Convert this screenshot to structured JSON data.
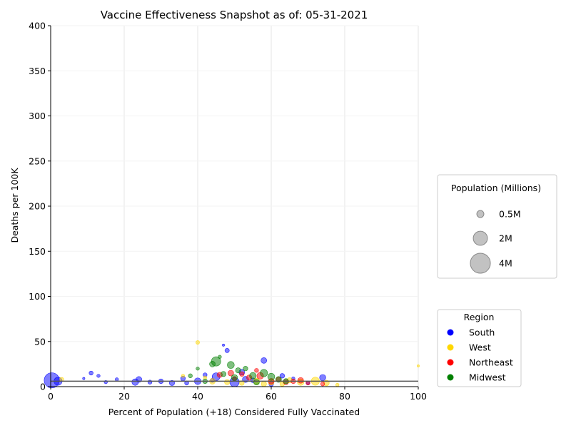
{
  "chart_data": {
    "type": "scatter",
    "title": "Vaccine Effectiveness Snapshot as of: 05-31-2021",
    "xlabel": "Percent of Population (+18) Considered Fully Vaccinated",
    "ylabel": "Deaths per 100K",
    "xlim": [
      0,
      100
    ],
    "ylim": [
      0,
      400
    ],
    "xticks": [
      "0",
      "20",
      "40",
      "60",
      "80",
      "100"
    ],
    "yticks": [
      "0",
      "50",
      "100",
      "150",
      "200",
      "250",
      "300",
      "350",
      "400"
    ],
    "grid": "vertical",
    "reference_line_y": 6,
    "size_legend": {
      "title": "Population (Millions)",
      "entries": [
        {
          "label": "0.5M",
          "pop": 0.5
        },
        {
          "label": "2M",
          "pop": 2
        },
        {
          "label": "4M",
          "pop": 4
        }
      ]
    },
    "region_legend": {
      "title": "Region",
      "entries": [
        {
          "label": "South",
          "color": "#0000ff"
        },
        {
          "label": "West",
          "color": "#ffd700"
        },
        {
          "label": "Northeast",
          "color": "#ff0000"
        },
        {
          "label": "Midwest",
          "color": "#008000"
        }
      ]
    },
    "series": [
      {
        "name": "South",
        "color": "#0000ff",
        "points": [
          [
            0.3,
            7,
            4.2
          ],
          [
            2,
            6,
            1.2
          ],
          [
            11,
            15,
            0.3
          ],
          [
            23,
            5,
            0.8
          ],
          [
            24,
            8,
            0.6
          ],
          [
            30,
            6,
            0.4
          ],
          [
            33,
            4,
            0.5
          ],
          [
            36,
            9,
            0.4
          ],
          [
            40,
            6,
            0.8
          ],
          [
            42,
            13,
            0.3
          ],
          [
            45,
            11,
            1.1
          ],
          [
            48,
            40,
            0.35
          ],
          [
            50,
            5,
            1.6
          ],
          [
            52,
            16,
            0.6
          ],
          [
            53,
            8,
            0.7
          ],
          [
            55,
            7,
            0.4
          ],
          [
            58,
            29,
            0.6
          ],
          [
            60,
            3,
            0.4
          ],
          [
            63,
            12,
            0.4
          ],
          [
            74,
            10,
            0.7
          ],
          [
            47,
            46,
            0.1
          ],
          [
            37,
            4,
            0.3
          ],
          [
            27,
            5,
            0.3
          ],
          [
            18,
            8,
            0.2
          ],
          [
            15,
            5,
            0.2
          ],
          [
            9,
            9,
            0.1
          ],
          [
            13,
            12,
            0.2
          ],
          [
            44,
            7,
            0.3
          ],
          [
            66,
            9,
            0.2
          ],
          [
            70,
            4,
            0.2
          ]
        ]
      },
      {
        "name": "West",
        "color": "#ffd700",
        "points": [
          [
            3,
            8,
            0.3
          ],
          [
            40,
            49,
            0.25
          ],
          [
            44,
            6,
            0.6
          ],
          [
            48,
            5,
            0.5
          ],
          [
            52,
            4,
            0.4
          ],
          [
            56,
            6,
            0.7
          ],
          [
            60,
            5,
            0.6
          ],
          [
            65,
            7,
            0.5
          ],
          [
            68,
            5,
            0.8
          ],
          [
            72,
            6,
            1.2
          ],
          [
            75,
            4,
            0.6
          ],
          [
            78,
            2,
            0.2
          ],
          [
            100,
            23,
            0.1
          ],
          [
            42,
            10,
            0.2
          ],
          [
            36,
            12,
            0.2
          ],
          [
            58,
            3,
            0.5
          ],
          [
            63,
            3,
            0.4
          ]
        ]
      },
      {
        "name": "Northeast",
        "color": "#ff0000",
        "points": [
          [
            46,
            13,
            0.5
          ],
          [
            49,
            15,
            0.6
          ],
          [
            52,
            14,
            0.4
          ],
          [
            54,
            10,
            0.5
          ],
          [
            57,
            12,
            0.8
          ],
          [
            60,
            6,
            0.6
          ],
          [
            62,
            8,
            0.4
          ],
          [
            64,
            5,
            0.5
          ],
          [
            66,
            6,
            0.4
          ],
          [
            68,
            7,
            0.6
          ],
          [
            70,
            4,
            0.3
          ],
          [
            74,
            3,
            0.3
          ],
          [
            56,
            18,
            0.3
          ],
          [
            50,
            9,
            0.3
          ]
        ]
      },
      {
        "name": "Midwest",
        "color": "#008000",
        "points": [
          [
            44,
            25,
            0.6
          ],
          [
            45,
            28,
            1.6
          ],
          [
            46,
            33,
            0.2
          ],
          [
            49,
            24,
            0.9
          ],
          [
            51,
            18,
            0.5
          ],
          [
            53,
            20,
            0.4
          ],
          [
            55,
            12,
            0.8
          ],
          [
            58,
            15,
            1.0
          ],
          [
            60,
            11,
            0.9
          ],
          [
            62,
            8,
            0.6
          ],
          [
            50,
            10,
            0.7
          ],
          [
            47,
            14,
            0.5
          ],
          [
            40,
            20,
            0.2
          ],
          [
            38,
            12,
            0.3
          ],
          [
            64,
            6,
            0.5
          ],
          [
            42,
            6,
            0.4
          ],
          [
            56,
            5,
            0.6
          ]
        ]
      }
    ]
  }
}
